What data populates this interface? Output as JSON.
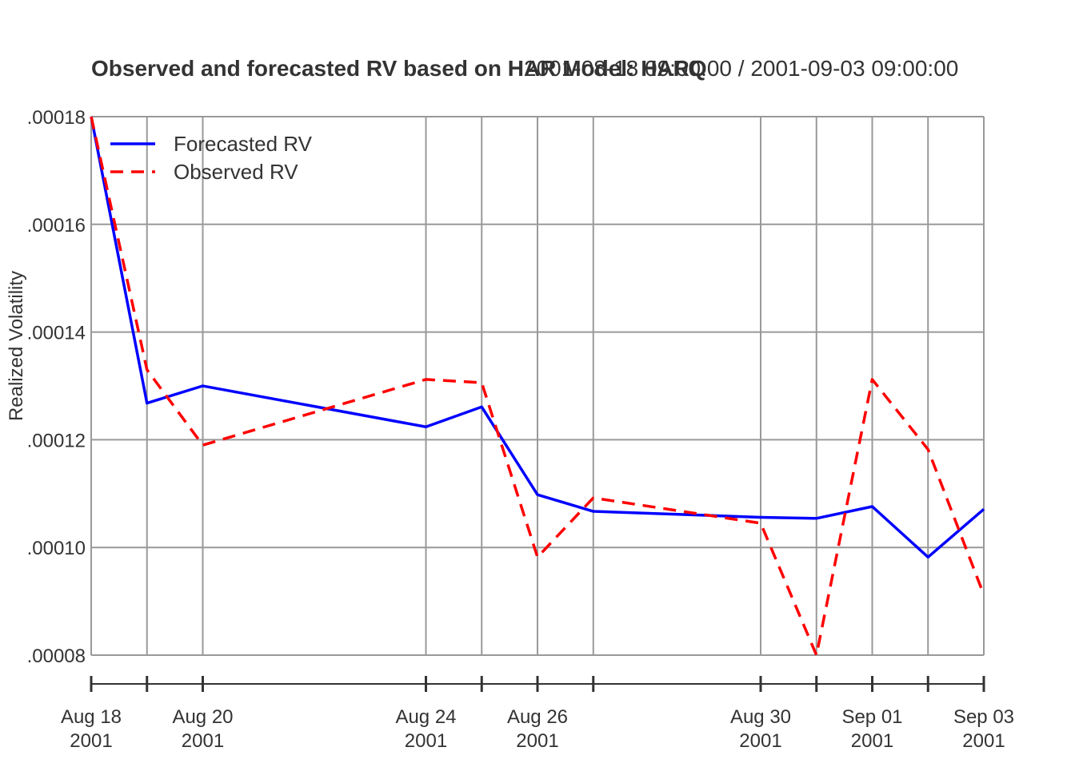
{
  "chart_data": {
    "type": "line",
    "title": "Observed and forecasted RV based on HAR Model: HARQ",
    "subtitle": "2001-08-18 09:00:00 / 2001-09-03 09:00:00",
    "xlabel": "",
    "ylabel": "Realized Volatility",
    "x": [
      "2001-08-18",
      "2001-08-19",
      "2001-08-20",
      "2001-08-24",
      "2001-08-25",
      "2001-08-26",
      "2001-08-27",
      "2001-08-30",
      "2001-08-31",
      "2001-09-01",
      "2001-09-02",
      "2001-09-03"
    ],
    "x_tick_labels": [
      {
        "date": "2001-08-18",
        "line1": "Aug 18",
        "line2": "2001"
      },
      {
        "date": "2001-08-20",
        "line1": "Aug 20",
        "line2": "2001"
      },
      {
        "date": "2001-08-24",
        "line1": "Aug 24",
        "line2": "2001"
      },
      {
        "date": "2001-08-26",
        "line1": "Aug 26",
        "line2": "2001"
      },
      {
        "date": "2001-08-30",
        "line1": "Aug 30",
        "line2": "2001"
      },
      {
        "date": "2001-09-01",
        "line1": "Sep 01",
        "line2": "2001"
      },
      {
        "date": "2001-09-03",
        "line1": "Sep 03",
        "line2": "2001"
      }
    ],
    "y_ticks": [
      8e-05,
      0.0001,
      0.00012,
      0.00014,
      0.00016,
      0.00018
    ],
    "y_tick_labels": [
      ".00008",
      ".00010",
      ".00012",
      ".00014",
      ".00016",
      ".00018"
    ],
    "ylim": [
      8e-05,
      0.00018
    ],
    "grid": true,
    "legend_position": "top-left",
    "series": [
      {
        "name": "Forecasted RV",
        "color": "#0000ff",
        "dash": "solid",
        "values": [
          0.00018,
          0.0001268,
          0.00013,
          0.0001224,
          0.0001261,
          0.0001098,
          0.0001067,
          0.0001056,
          0.0001054,
          0.0001076,
          9.82e-05,
          0.0001071
        ]
      },
      {
        "name": "Observed RV",
        "color": "#ff0000",
        "dash": "dashed",
        "values": [
          0.00018,
          0.000133,
          0.000119,
          0.0001312,
          0.0001306,
          9.82e-05,
          0.0001092,
          0.0001045,
          8e-05,
          0.0001312,
          0.0001182,
          9.12e-05
        ]
      }
    ]
  }
}
